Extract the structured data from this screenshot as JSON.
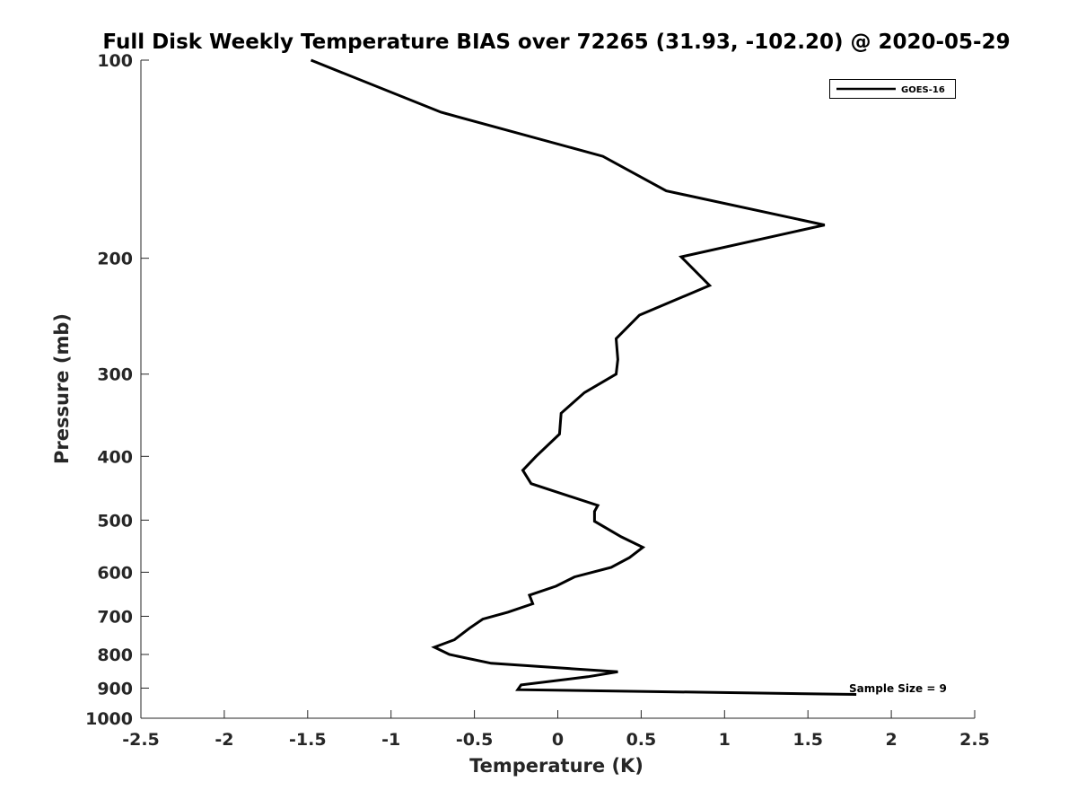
{
  "chart_data": {
    "type": "line",
    "title": "Full Disk Weekly Temperature BIAS over 72265 (31.93, -102.20) @ 2020-05-29",
    "xlabel": "Temperature (K)",
    "ylabel": "Pressure (mb)",
    "xlim": [
      -2.5,
      2.5
    ],
    "ylim": [
      100,
      1000
    ],
    "yscale": "log",
    "y_reversed": true,
    "x_ticks": [
      "-2.5",
      "-2",
      "-1.5",
      "-1",
      "-0.5",
      "0",
      "0.5",
      "1",
      "1.5",
      "2",
      "2.5"
    ],
    "y_ticks": [
      "100",
      "200",
      "300",
      "400",
      "500",
      "600",
      "700",
      "800",
      "900",
      "1000"
    ],
    "grid": false,
    "legend_position": "top-right",
    "annotation": "Sample Size = 9",
    "series": [
      {
        "name": "GOES-16",
        "color": "#000000",
        "points": [
          [
            -1.48,
            100
          ],
          [
            -0.7,
            120
          ],
          [
            0.27,
            140
          ],
          [
            0.65,
            158
          ],
          [
            1.6,
            178
          ],
          [
            0.74,
            199
          ],
          [
            0.91,
            220
          ],
          [
            0.49,
            244
          ],
          [
            0.35,
            265
          ],
          [
            0.36,
            285
          ],
          [
            0.35,
            300
          ],
          [
            0.16,
            320
          ],
          [
            0.02,
            344
          ],
          [
            0.01,
            370
          ],
          [
            -0.13,
            400
          ],
          [
            -0.21,
            420
          ],
          [
            -0.16,
            440
          ],
          [
            0.24,
            475
          ],
          [
            0.22,
            485
          ],
          [
            0.22,
            502
          ],
          [
            0.38,
            530
          ],
          [
            0.51,
            550
          ],
          [
            0.43,
            570
          ],
          [
            0.32,
            590
          ],
          [
            0.1,
            610
          ],
          [
            -0.01,
            630
          ],
          [
            -0.17,
            650
          ],
          [
            -0.15,
            670
          ],
          [
            -0.3,
            690
          ],
          [
            -0.45,
            707
          ],
          [
            -0.53,
            730
          ],
          [
            -0.62,
            760
          ],
          [
            -0.74,
            780
          ],
          [
            -0.65,
            800
          ],
          [
            -0.4,
            825
          ],
          [
            0.36,
            850
          ],
          [
            0.18,
            865
          ],
          [
            -0.22,
            890
          ],
          [
            -0.24,
            905
          ],
          [
            1.79,
            920
          ]
        ]
      }
    ]
  }
}
